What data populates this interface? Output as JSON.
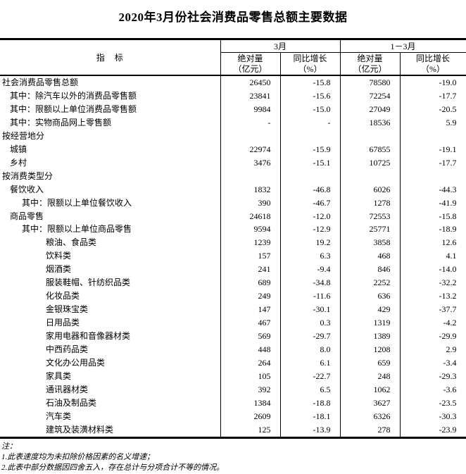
{
  "title": "2020年3月份社会消费品零售总额主要数据",
  "colors": {
    "text": "#000000",
    "border": "#000000",
    "background": "#ffffff"
  },
  "table": {
    "header": {
      "indicator": "指　标",
      "groups": [
        {
          "label": "3月",
          "cols": [
            {
              "line1": "绝对量",
              "line2": "（亿元）"
            },
            {
              "line1": "同比增长",
              "line2": "（%）"
            }
          ]
        },
        {
          "label": "1－3月",
          "cols": [
            {
              "line1": "绝对量",
              "line2": "（亿元）"
            },
            {
              "line1": "同比增长",
              "line2": "（%）"
            }
          ]
        }
      ]
    },
    "rows": [
      {
        "indicator": "社会消费品零售总额",
        "level": 0,
        "values": [
          "26450",
          "-15.8",
          "78580",
          "-19.0"
        ]
      },
      {
        "indicator": "其中：除汽车以外的消费品零售额",
        "level": 1,
        "values": [
          "23841",
          "-15.6",
          "72254",
          "-17.7"
        ]
      },
      {
        "indicator": "其中：限额以上单位消费品零售额",
        "level": 1,
        "values": [
          "9984",
          "-15.0",
          "27049",
          "-20.5"
        ]
      },
      {
        "indicator": "其中：实物商品网上零售额",
        "level": 1,
        "values": [
          "-",
          "-",
          "18536",
          "5.9"
        ]
      },
      {
        "indicator": "按经营地分",
        "level": 0,
        "values": [
          "",
          "",
          "",
          ""
        ]
      },
      {
        "indicator": "城镇",
        "level": 1,
        "values": [
          "22974",
          "-15.9",
          "67855",
          "-19.1"
        ]
      },
      {
        "indicator": "乡村",
        "level": 1,
        "values": [
          "3476",
          "-15.1",
          "10725",
          "-17.7"
        ]
      },
      {
        "indicator": "按消费类型分",
        "level": 0,
        "values": [
          "",
          "",
          "",
          ""
        ]
      },
      {
        "indicator": "餐饮收入",
        "level": 1,
        "values": [
          "1832",
          "-46.8",
          "6026",
          "-44.3"
        ]
      },
      {
        "indicator": "其中：限额以上单位餐饮收入",
        "level": 2,
        "values": [
          "390",
          "-46.7",
          "1278",
          "-41.9"
        ]
      },
      {
        "indicator": "商品零售",
        "level": 1,
        "values": [
          "24618",
          "-12.0",
          "72553",
          "-15.8"
        ]
      },
      {
        "indicator": "其中：限额以上单位商品零售",
        "level": 2,
        "values": [
          "9594",
          "-12.9",
          "25771",
          "-18.9"
        ]
      },
      {
        "indicator": "粮油、食品类",
        "level": 3,
        "values": [
          "1239",
          "19.2",
          "3858",
          "12.6"
        ]
      },
      {
        "indicator": "饮料类",
        "level": 3,
        "values": [
          "157",
          "6.3",
          "468",
          "4.1"
        ]
      },
      {
        "indicator": "烟酒类",
        "level": 3,
        "values": [
          "241",
          "-9.4",
          "846",
          "-14.0"
        ]
      },
      {
        "indicator": "服装鞋帽、针纺织品类",
        "level": 3,
        "values": [
          "689",
          "-34.8",
          "2252",
          "-32.2"
        ]
      },
      {
        "indicator": "化妆品类",
        "level": 3,
        "values": [
          "249",
          "-11.6",
          "636",
          "-13.2"
        ]
      },
      {
        "indicator": "金银珠宝类",
        "level": 3,
        "values": [
          "147",
          "-30.1",
          "429",
          "-37.7"
        ]
      },
      {
        "indicator": "日用品类",
        "level": 3,
        "values": [
          "467",
          "0.3",
          "1319",
          "-4.2"
        ]
      },
      {
        "indicator": "家用电器和音像器材类",
        "level": 3,
        "values": [
          "569",
          "-29.7",
          "1389",
          "-29.9"
        ]
      },
      {
        "indicator": "中西药品类",
        "level": 3,
        "values": [
          "448",
          "8.0",
          "1208",
          "2.9"
        ]
      },
      {
        "indicator": "文化办公用品类",
        "level": 3,
        "values": [
          "264",
          "6.1",
          "659",
          "-3.4"
        ]
      },
      {
        "indicator": "家具类",
        "level": 3,
        "values": [
          "105",
          "-22.7",
          "248",
          "-29.3"
        ]
      },
      {
        "indicator": "通讯器材类",
        "level": 3,
        "values": [
          "392",
          "6.5",
          "1062",
          "-3.6"
        ]
      },
      {
        "indicator": "石油及制品类",
        "level": 3,
        "values": [
          "1384",
          "-18.8",
          "3627",
          "-23.5"
        ]
      },
      {
        "indicator": "汽车类",
        "level": 3,
        "values": [
          "2609",
          "-18.1",
          "6326",
          "-30.3"
        ]
      },
      {
        "indicator": "建筑及装潢材料类",
        "level": 3,
        "values": [
          "125",
          "-13.9",
          "278",
          "-23.9"
        ]
      }
    ]
  },
  "notes": {
    "label": "注：",
    "items": [
      "1.此表速度均为未扣除价格因素的名义增速；",
      "2.此表中部分数据因四舍五入，存在总计与分项合计不等的情况。"
    ]
  }
}
